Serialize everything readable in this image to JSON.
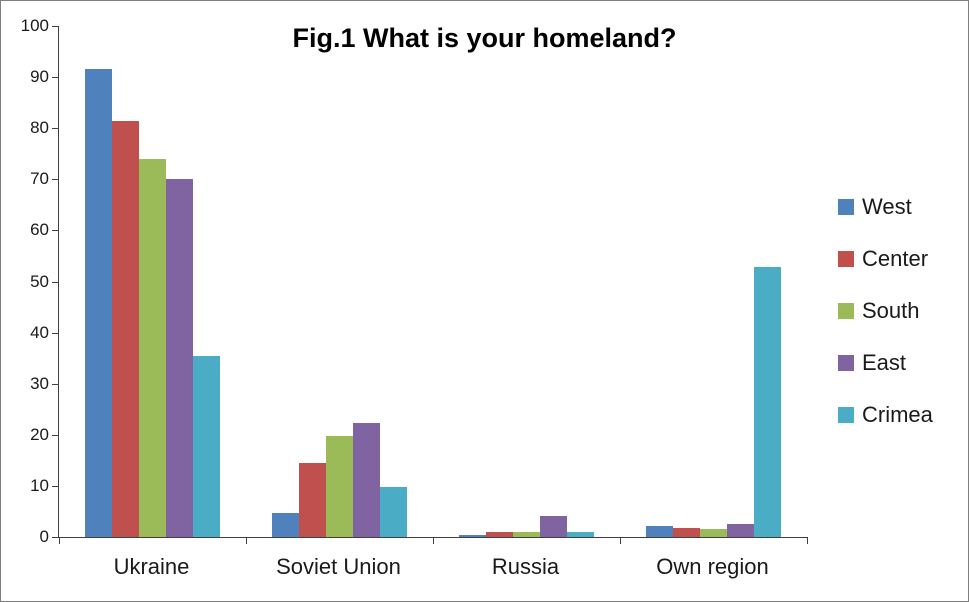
{
  "chart_data": {
    "type": "bar",
    "title": "Fig.1 What is your homeland?",
    "categories": [
      "Ukraine",
      "Soviet Union",
      "Russia",
      "Own region"
    ],
    "series": [
      {
        "name": "West",
        "color": "#4F81BD",
        "values": [
          91.5,
          4.7,
          0.4,
          2.2
        ]
      },
      {
        "name": "Center",
        "color": "#C0504D",
        "values": [
          81.5,
          14.5,
          1.0,
          1.8
        ]
      },
      {
        "name": "South",
        "color": "#9BBB59",
        "values": [
          74.0,
          19.7,
          1.0,
          1.6
        ]
      },
      {
        "name": "East",
        "color": "#8064A2",
        "values": [
          70.0,
          22.3,
          4.1,
          2.5
        ]
      },
      {
        "name": "Crimea",
        "color": "#4BACC6",
        "values": [
          35.5,
          9.7,
          1.0,
          52.8
        ]
      }
    ],
    "xlabel": "",
    "ylabel": "",
    "ylim": [
      0,
      100
    ],
    "yticks": [
      0,
      10,
      20,
      30,
      40,
      50,
      60,
      70,
      80,
      90,
      100
    ],
    "grid": false,
    "legend_position": "right"
  }
}
